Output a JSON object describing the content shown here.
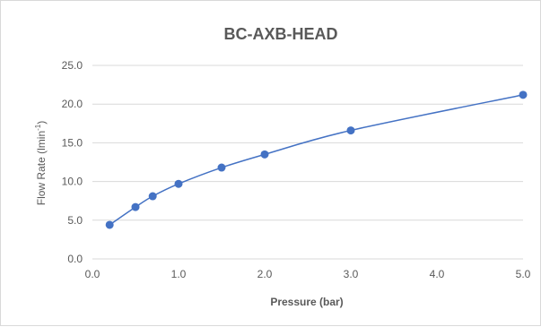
{
  "chart_data": {
    "type": "scatter",
    "title": "BC-AXB-HEAD",
    "xlabel": "Pressure (bar)",
    "ylabel_main": "Flow Rate (lmin",
    "ylabel_sup": "-1",
    "ylabel_close": ")",
    "xlim": [
      0.0,
      5.0
    ],
    "ylim": [
      0.0,
      25.0
    ],
    "x_ticks": [
      0,
      1,
      2,
      3,
      4,
      5
    ],
    "x_tick_labels": [
      "0.0",
      "1.0",
      "2.0",
      "3.0",
      "4.0",
      "5.0"
    ],
    "y_ticks": [
      0,
      5,
      10,
      15,
      20,
      25
    ],
    "y_tick_labels": [
      "0.0",
      "5.0",
      "10.0",
      "15.0",
      "20.0",
      "25.0"
    ],
    "grid": true,
    "legend": "none",
    "series_color": "#4472c4",
    "series": [
      {
        "x": [
          0.2,
          0.5,
          0.7,
          1.0,
          1.5,
          2.0,
          3.0,
          5.0
        ],
        "y": [
          4.4,
          6.7,
          8.1,
          9.7,
          11.8,
          13.5,
          16.6,
          21.2
        ]
      }
    ]
  }
}
